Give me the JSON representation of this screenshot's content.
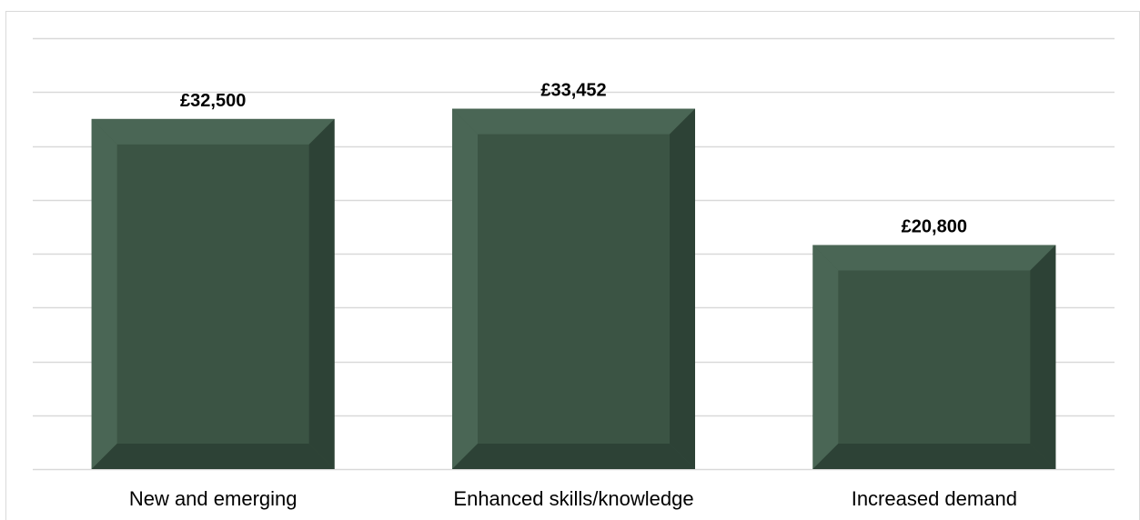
{
  "chart_data": {
    "type": "bar",
    "categories": [
      "New and emerging",
      "Enhanced skills/knowledge",
      "Increased demand"
    ],
    "values": [
      32500,
      33452,
      20800
    ],
    "value_labels": [
      "£32,500",
      "£33,452",
      "£20,800"
    ],
    "title": "",
    "xlabel": "",
    "ylabel": "",
    "ylim": [
      0,
      40000
    ],
    "grid": true,
    "legend": "none",
    "colors": {
      "bar": "#3b5444",
      "bar_highlight": "#4e6a58",
      "bar_shadow": "#2c4034",
      "gridline": "#d9d9d9"
    }
  }
}
